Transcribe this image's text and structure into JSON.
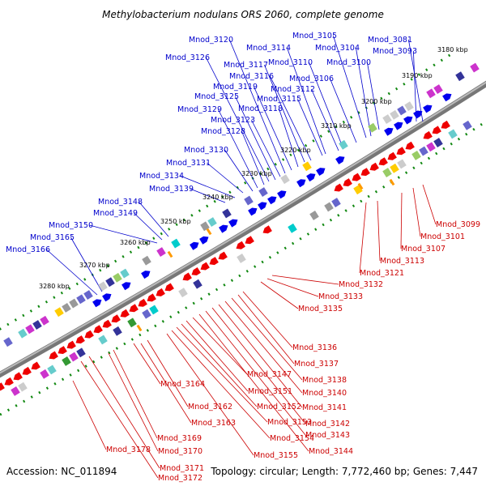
{
  "title": "Methylobacterium nodulans ORS 2060, complete genome",
  "footer": {
    "accession": "Accession: NC_011894",
    "summary": "Topology: circular; Length: 7,772,460 bp; Genes: 7,447"
  },
  "colors": {
    "forward": "#0000ee",
    "reverse": "#ee0000",
    "backbone": "#777777",
    "ticks": "#118811"
  },
  "kbp_ticks": [
    "3180 kbp",
    "3190 kbp",
    "3200 kbp",
    "3210 kbp",
    "3220 kbp",
    "3230 kbp",
    "3240 kbp",
    "3250 kbp",
    "3260 kbp",
    "3270 kbp",
    "3280 kbp"
  ],
  "genes_top": [
    "Mnod_3081",
    "Mnod_3093",
    "Mnod_3100",
    "Mnod_3104",
    "Mnod_3105",
    "Mnod_3106",
    "Mnod_3110",
    "Mnod_3112",
    "Mnod_3114",
    "Mnod_3115",
    "Mnod_3116",
    "Mnod_3117",
    "Mnod_3118",
    "Mnod_3119",
    "Mnod_3120",
    "Mnod_3123",
    "Mnod_3125",
    "Mnod_3126",
    "Mnod_3128",
    "Mnod_3129",
    "Mnod_3130",
    "Mnod_3131",
    "Mnod_3134",
    "Mnod_3139",
    "Mnod_3148",
    "Mnod_3149",
    "Mnod_3150",
    "Mnod_3165",
    "Mnod_3166"
  ],
  "genes_bottom": [
    "Mnod_3099",
    "Mnod_3101",
    "Mnod_3107",
    "Mnod_3113",
    "Mnod_3121",
    "Mnod_3132",
    "Mnod_3133",
    "Mnod_3135",
    "Mnod_3136",
    "Mnod_3137",
    "Mnod_3138",
    "Mnod_3140",
    "Mnod_3141",
    "Mnod_3142",
    "Mnod_3143",
    "Mnod_3144",
    "Mnod_3147",
    "Mnod_3151",
    "Mnod_3152",
    "Mnod_3153",
    "Mnod_3154",
    "Mnod_3155",
    "Mnod_3162",
    "Mnod_3163",
    "Mnod_3164",
    "Mnod_3169",
    "Mnod_3170",
    "Mnod_3171",
    "Mnod_3172",
    "Mnod_3178"
  ]
}
